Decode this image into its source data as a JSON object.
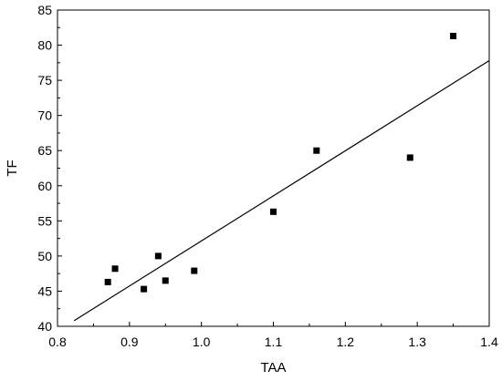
{
  "chart_data": {
    "type": "scatter",
    "xlabel": "TAA",
    "ylabel": "TF",
    "xlim": [
      0.8,
      1.4
    ],
    "ylim": [
      40,
      85
    ],
    "x_ticks": [
      "0.8",
      "0.9",
      "1.0",
      "1.1",
      "1.2",
      "1.3",
      "1.4"
    ],
    "y_ticks": [
      "40",
      "45",
      "50",
      "55",
      "60",
      "65",
      "70",
      "75",
      "80",
      "85"
    ],
    "grid": false,
    "legend": "none",
    "marker": "square",
    "color": "#000000",
    "points": [
      {
        "x": 0.87,
        "y": 46.3
      },
      {
        "x": 0.88,
        "y": 48.2
      },
      {
        "x": 0.92,
        "y": 45.3
      },
      {
        "x": 0.94,
        "y": 50.0
      },
      {
        "x": 0.95,
        "y": 46.5
      },
      {
        "x": 0.99,
        "y": 47.9
      },
      {
        "x": 1.1,
        "y": 56.3
      },
      {
        "x": 1.16,
        "y": 65.0
      },
      {
        "x": 1.29,
        "y": 64.0
      },
      {
        "x": 1.35,
        "y": 81.3
      }
    ],
    "fit_line": {
      "x": [
        0.823,
        1.4
      ],
      "y": [
        40.8,
        77.8
      ]
    }
  }
}
